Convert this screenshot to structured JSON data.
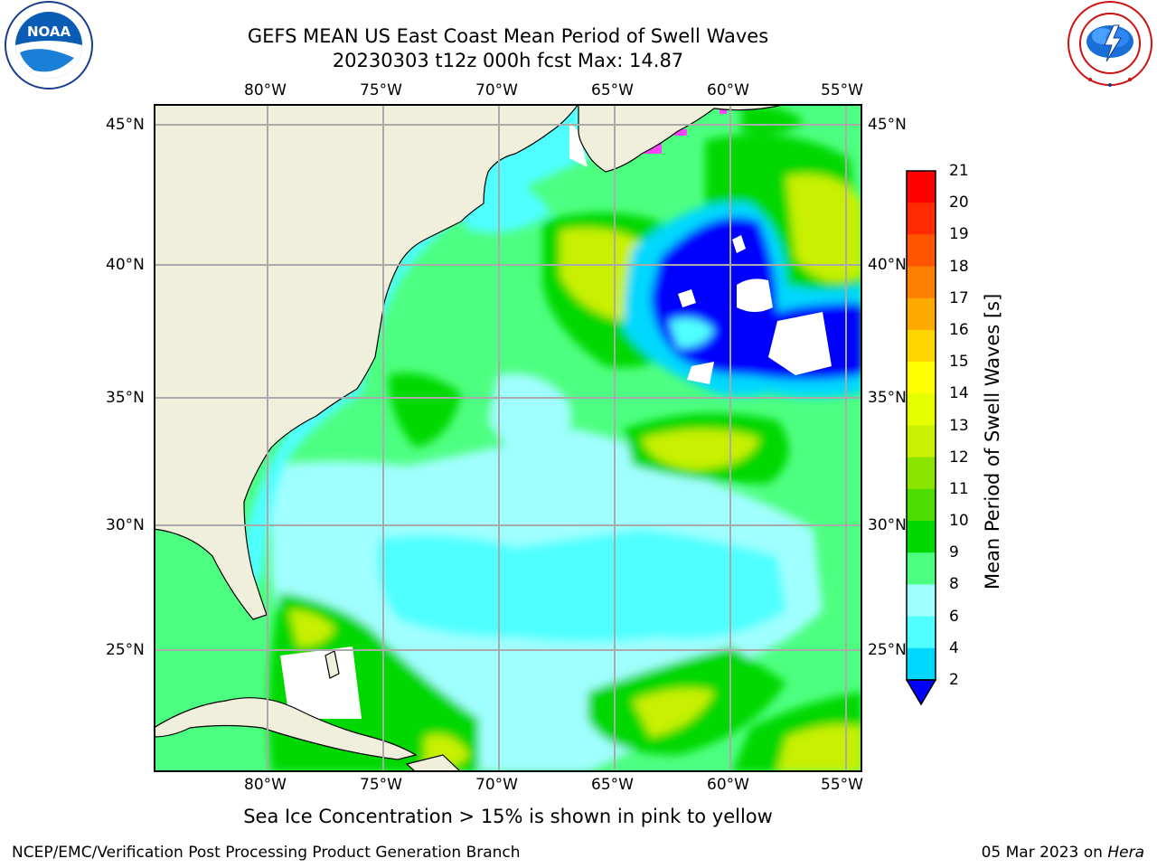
{
  "header": {
    "title_line1": "GEFS MEAN US East Coast Mean Period of Swell Waves",
    "title_line2": "20230303 t12z 000h fcst   Max: 14.87"
  },
  "logos": {
    "left": {
      "name": "noaa-logo",
      "text": "NOAA",
      "ring_text": "NATIONAL OCEANIC AND ATMOSPHERIC ADMINISTRATION · U.S. DEPARTMENT OF COMMERCE"
    },
    "right": {
      "name": "nws-logo",
      "ring_text": "NATIONAL WEATHER SERVICE"
    }
  },
  "map": {
    "lon_labels": [
      "80°W",
      "75°W",
      "70°W",
      "65°W",
      "60°W",
      "55°W"
    ],
    "lat_labels": [
      "45°N",
      "40°N",
      "35°N",
      "30°N",
      "25°N"
    ],
    "land_color": "#efefdc",
    "grid_color": "#aaaaaa"
  },
  "colorbar": {
    "label": "Mean Period of Swell Waves [s]",
    "ticks": [
      "21",
      "20",
      "19",
      "18",
      "17",
      "16",
      "15",
      "14",
      "13",
      "12",
      "11",
      "10",
      "9",
      "8",
      "6",
      "4",
      "2"
    ],
    "colors": [
      "#ff0000",
      "#ff2b00",
      "#ff5500",
      "#ff8000",
      "#ffaa00",
      "#ffd500",
      "#ffff00",
      "#e6ff00",
      "#c8f000",
      "#8ae600",
      "#4ddc00",
      "#00d800",
      "#4dff80",
      "#a0ffff",
      "#50ffff",
      "#00d8ff",
      "#0070ff"
    ],
    "under_color": "#0000ff"
  },
  "note": "Sea Ice Concentration > 15% is shown in pink to yellow",
  "footer": {
    "left": "NCEP/EMC/Verification Post Processing Product Generation Branch",
    "right_date": "05 Mar 2023 on",
    "right_host": "Hera"
  }
}
